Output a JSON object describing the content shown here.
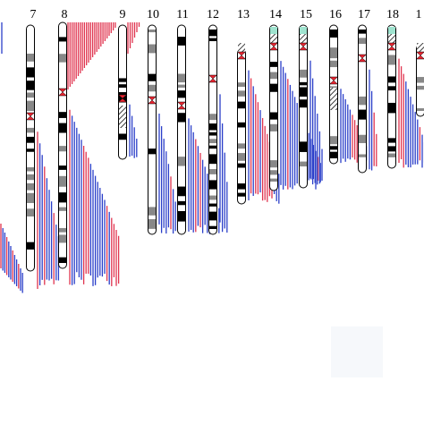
{
  "chromosome_labels": [
    "7",
    "8",
    "9",
    "10",
    "11",
    "12",
    "13",
    "14",
    "15",
    "16",
    "17",
    "18",
    "1"
  ]
}
